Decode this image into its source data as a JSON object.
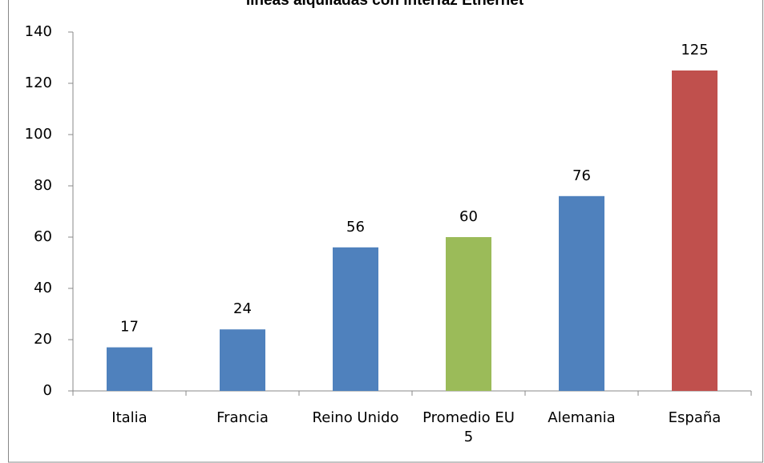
{
  "chart_data": {
    "type": "bar",
    "title": "líneas alquiladas con interfaz Ethernet",
    "categories": [
      "Italia",
      "Francia",
      "Reino Unido",
      "Promedio EU 5",
      "Alemania",
      "España"
    ],
    "values": [
      17,
      24,
      56,
      60,
      76,
      125
    ],
    "colors": [
      "#4f81bd",
      "#4f81bd",
      "#4f81bd",
      "#9bbb59",
      "#4f81bd",
      "#c0504d"
    ],
    "ylim": [
      0,
      140
    ],
    "yticks": [
      0,
      20,
      40,
      60,
      80,
      100,
      120,
      140
    ],
    "grid": false
  }
}
